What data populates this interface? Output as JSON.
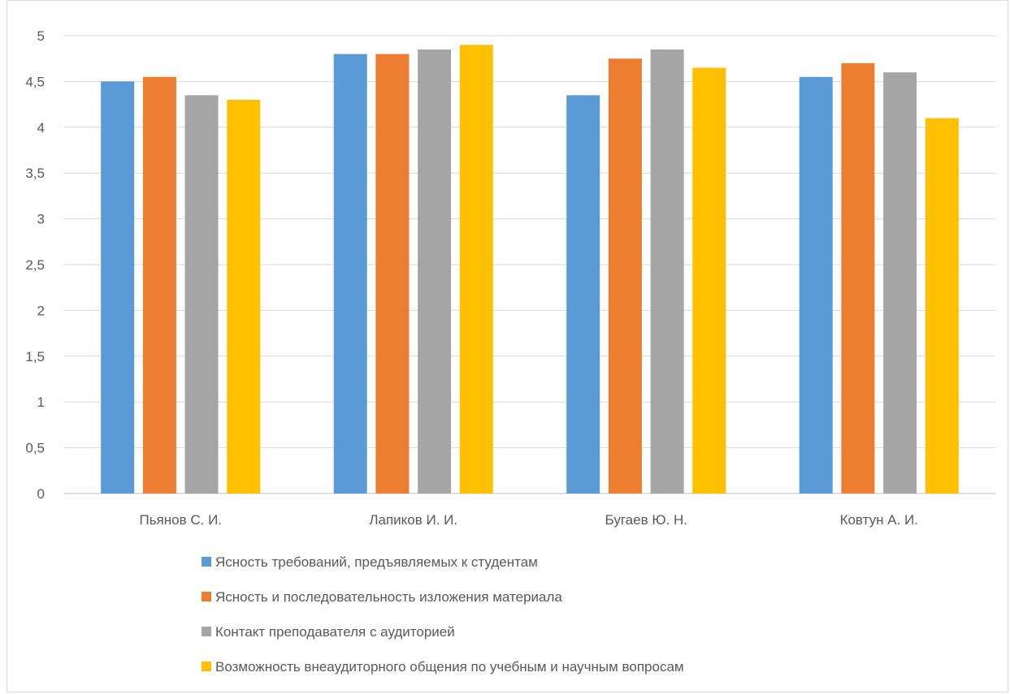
{
  "chart_data": {
    "type": "bar",
    "title": "",
    "xlabel": "",
    "ylabel": "",
    "categories": [
      "Пьянов С. И.",
      "Лапиков И. И.",
      "Бугаев Ю. Н.",
      "Ковтун А. И."
    ],
    "ylim": [
      0,
      5
    ],
    "y_ticks": [
      "0",
      "0,5",
      "1",
      "1,5",
      "2",
      "2,5",
      "3",
      "3,5",
      "4",
      "4,5",
      "5"
    ],
    "grid": true,
    "legend_position": "bottom",
    "series": [
      {
        "name": "Ясность требований, предъявляемых к студентам",
        "color": "#5b9bd5",
        "values": [
          4.5,
          4.8,
          4.35,
          4.55
        ]
      },
      {
        "name": "Ясность и последовательность изложения материала",
        "color": "#ed7d31",
        "values": [
          4.55,
          4.8,
          4.75,
          4.7
        ]
      },
      {
        "name": "Контакт преподавателя с аудиторией",
        "color": "#a5a5a5",
        "values": [
          4.35,
          4.85,
          4.85,
          4.6
        ]
      },
      {
        "name": "Возможность внеаудиторного общения по учебным и научным вопросам",
        "color": "#ffc000",
        "values": [
          4.3,
          4.9,
          4.65,
          4.1
        ]
      }
    ]
  }
}
